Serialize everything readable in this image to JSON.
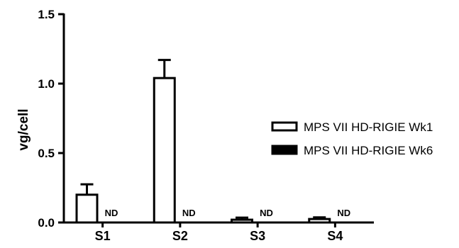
{
  "chart_data": {
    "type": "bar",
    "title": "",
    "xlabel": "",
    "ylabel": "vg/cell",
    "ylim": [
      0,
      1.5
    ],
    "yticks": [
      "0.0",
      "0.5",
      "1.0",
      "1.5"
    ],
    "categories": [
      "S1",
      "S2",
      "S3",
      "S4"
    ],
    "series": [
      {
        "name": "MPS VII HD-RIGIE Wk1",
        "fill": "#ffffff",
        "values": [
          0.2,
          1.04,
          0.02,
          0.025
        ],
        "error": [
          0.075,
          0.13,
          0.015,
          0.012
        ]
      },
      {
        "name": "MPS VII HD-RIGIE Wk6",
        "fill": "#000000",
        "values": [
          null,
          null,
          null,
          null
        ],
        "labels": [
          "ND",
          "ND",
          "ND",
          "ND"
        ]
      }
    ],
    "legend": "right",
    "grid": false
  }
}
